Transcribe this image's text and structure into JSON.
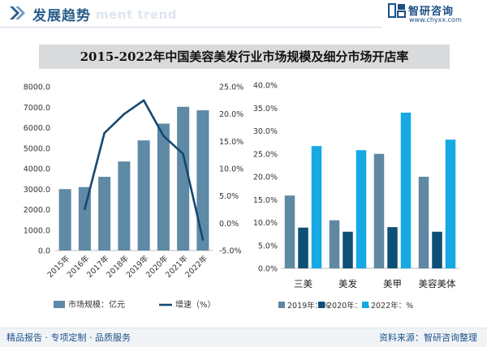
{
  "header": {
    "title": "发展趋势",
    "ghost_text": "ment trend",
    "brand_name": "智研咨询",
    "brand_url": "www.chyxx.com"
  },
  "colors": {
    "bar_left": "#5e8aa6",
    "line_left": "#164870",
    "series_2019": "#5f88a3",
    "series_2020": "#0e4f76",
    "series_2022": "#16a9e4",
    "title_bar": "#d8dadc"
  },
  "chart_data": [
    {
      "type": "bar",
      "title": "2015-2022年中国美容美发行业市场规模及细分市场开店率",
      "categories": [
        "2015年",
        "2016年",
        "2017年",
        "2018年",
        "2019年",
        "2020年",
        "2021年",
        "2022年"
      ],
      "series": [
        {
          "name": "市场规模：亿元",
          "type": "bar",
          "axis": "left",
          "values": [
            3000,
            3100,
            3600,
            4350,
            5380,
            6200,
            7020,
            6850
          ]
        },
        {
          "name": "增速（%）",
          "type": "line",
          "axis": "right",
          "values": [
            null,
            2.6,
            16.5,
            20.0,
            22.5,
            16.0,
            12.7,
            -3.0
          ]
        }
      ],
      "ylim_left": [
        0,
        8000
      ],
      "ylim_right": [
        -5,
        25
      ],
      "yticks_left": [
        "0.0",
        "1000.0",
        "2000.0",
        "3000.0",
        "4000.0",
        "5000.0",
        "6000.0",
        "7000.0",
        "8000.0"
      ],
      "yticks_right": [
        "-5.0%",
        "0.0%",
        "5.0%",
        "10.0%",
        "15.0%",
        "20.0%",
        "25.0%"
      ],
      "legend": [
        "市场规模：亿元",
        "增速（%）"
      ],
      "legend_position": "bottom",
      "grid": false
    },
    {
      "type": "bar",
      "categories": [
        "三美",
        "美发",
        "美甲",
        "美容美体"
      ],
      "series": [
        {
          "name": "2019年：%",
          "values": [
            15.9,
            10.5,
            25.0,
            20.0
          ]
        },
        {
          "name": "2020年：%",
          "values": [
            8.9,
            8.0,
            9.0,
            8.0
          ]
        },
        {
          "name": "2022年：%",
          "values": [
            26.7,
            25.8,
            34.0,
            28.1
          ]
        }
      ],
      "ylim": [
        0,
        40
      ],
      "yticks": [
        "0.0%",
        "5.0%",
        "10.0%",
        "15.0%",
        "20.0%",
        "25.0%",
        "30.0%",
        "35.0%",
        "40.0%"
      ],
      "legend_position": "bottom",
      "grid": false
    }
  ],
  "footer": {
    "left": "精品报告 · 专项定制 · 品质服务",
    "right": "资料来源：智研咨询整理"
  }
}
